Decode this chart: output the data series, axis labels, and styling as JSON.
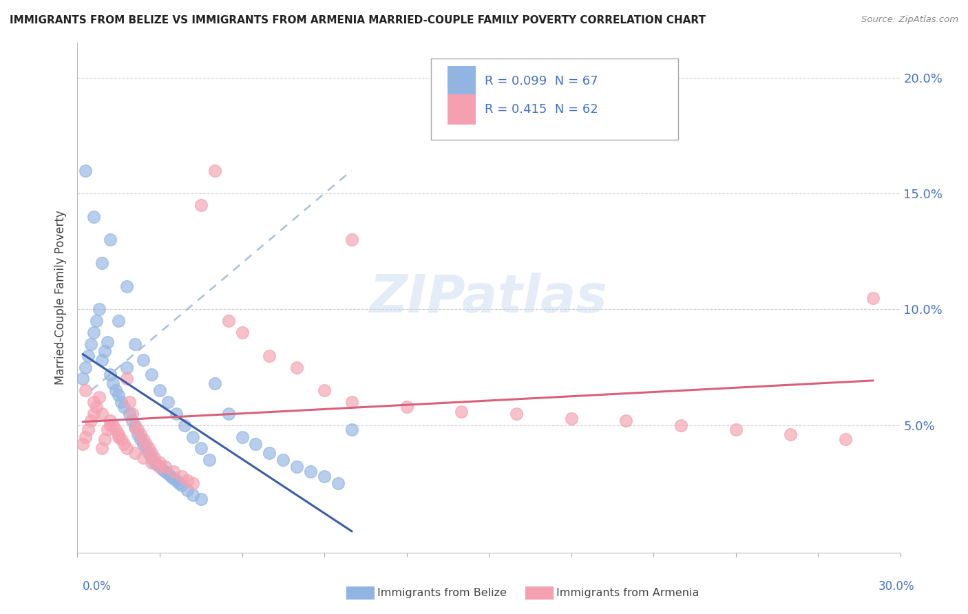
{
  "title": "IMMIGRANTS FROM BELIZE VS IMMIGRANTS FROM ARMENIA MARRIED-COUPLE FAMILY POVERTY CORRELATION CHART",
  "source": "Source: ZipAtlas.com",
  "ylabel": "Married-Couple Family Poverty",
  "xlim": [
    0.0,
    0.3
  ],
  "ylim": [
    -0.005,
    0.215
  ],
  "yticks": [
    0.05,
    0.1,
    0.15,
    0.2
  ],
  "ytick_labels": [
    "5.0%",
    "10.0%",
    "15.0%",
    "20.0%"
  ],
  "belize_color": "#92b4e3",
  "armenia_color": "#f4a0b0",
  "belize_line_color": "#3a5ea8",
  "armenia_line_color": "#d9607a",
  "dash_color": "#9ab5d0",
  "belize_R": 0.099,
  "belize_N": 67,
  "armenia_R": 0.415,
  "armenia_N": 62,
  "watermark": "ZIPatlas",
  "belize_x": [
    0.002,
    0.003,
    0.004,
    0.005,
    0.006,
    0.007,
    0.008,
    0.009,
    0.01,
    0.011,
    0.012,
    0.013,
    0.014,
    0.015,
    0.016,
    0.017,
    0.018,
    0.019,
    0.02,
    0.021,
    0.022,
    0.023,
    0.024,
    0.025,
    0.026,
    0.027,
    0.028,
    0.029,
    0.03,
    0.031,
    0.032,
    0.033,
    0.034,
    0.035,
    0.036,
    0.037,
    0.038,
    0.04,
    0.042,
    0.045,
    0.05,
    0.055,
    0.06,
    0.065,
    0.07,
    0.075,
    0.08,
    0.085,
    0.09,
    0.095,
    0.1,
    0.003,
    0.006,
    0.009,
    0.012,
    0.015,
    0.018,
    0.021,
    0.024,
    0.027,
    0.03,
    0.033,
    0.036,
    0.039,
    0.042,
    0.045,
    0.048
  ],
  "belize_y": [
    0.07,
    0.075,
    0.08,
    0.085,
    0.09,
    0.095,
    0.1,
    0.078,
    0.082,
    0.086,
    0.072,
    0.068,
    0.065,
    0.063,
    0.06,
    0.058,
    0.075,
    0.055,
    0.052,
    0.049,
    0.046,
    0.044,
    0.042,
    0.04,
    0.038,
    0.036,
    0.034,
    0.033,
    0.032,
    0.031,
    0.03,
    0.029,
    0.028,
    0.027,
    0.026,
    0.025,
    0.024,
    0.022,
    0.02,
    0.018,
    0.068,
    0.055,
    0.045,
    0.042,
    0.038,
    0.035,
    0.032,
    0.03,
    0.028,
    0.025,
    0.048,
    0.16,
    0.14,
    0.12,
    0.13,
    0.095,
    0.11,
    0.085,
    0.078,
    0.072,
    0.065,
    0.06,
    0.055,
    0.05,
    0.045,
    0.04,
    0.035
  ],
  "armenia_x": [
    0.002,
    0.003,
    0.004,
    0.005,
    0.006,
    0.007,
    0.008,
    0.009,
    0.01,
    0.011,
    0.012,
    0.013,
    0.014,
    0.015,
    0.016,
    0.017,
    0.018,
    0.019,
    0.02,
    0.021,
    0.022,
    0.023,
    0.024,
    0.025,
    0.026,
    0.027,
    0.028,
    0.03,
    0.032,
    0.035,
    0.038,
    0.04,
    0.042,
    0.045,
    0.05,
    0.055,
    0.06,
    0.07,
    0.08,
    0.09,
    0.1,
    0.12,
    0.14,
    0.16,
    0.18,
    0.2,
    0.22,
    0.24,
    0.26,
    0.28,
    0.003,
    0.006,
    0.009,
    0.012,
    0.015,
    0.018,
    0.021,
    0.024,
    0.027,
    0.03,
    0.29,
    0.1
  ],
  "armenia_y": [
    0.042,
    0.045,
    0.048,
    0.052,
    0.055,
    0.058,
    0.062,
    0.04,
    0.044,
    0.048,
    0.052,
    0.05,
    0.048,
    0.046,
    0.044,
    0.042,
    0.07,
    0.06,
    0.055,
    0.05,
    0.048,
    0.046,
    0.044,
    0.042,
    0.04,
    0.038,
    0.036,
    0.034,
    0.032,
    0.03,
    0.028,
    0.026,
    0.025,
    0.145,
    0.16,
    0.095,
    0.09,
    0.08,
    0.075,
    0.065,
    0.06,
    0.058,
    0.056,
    0.055,
    0.053,
    0.052,
    0.05,
    0.048,
    0.046,
    0.044,
    0.065,
    0.06,
    0.055,
    0.05,
    0.045,
    0.04,
    0.038,
    0.036,
    0.034,
    0.032,
    0.105,
    0.13
  ]
}
